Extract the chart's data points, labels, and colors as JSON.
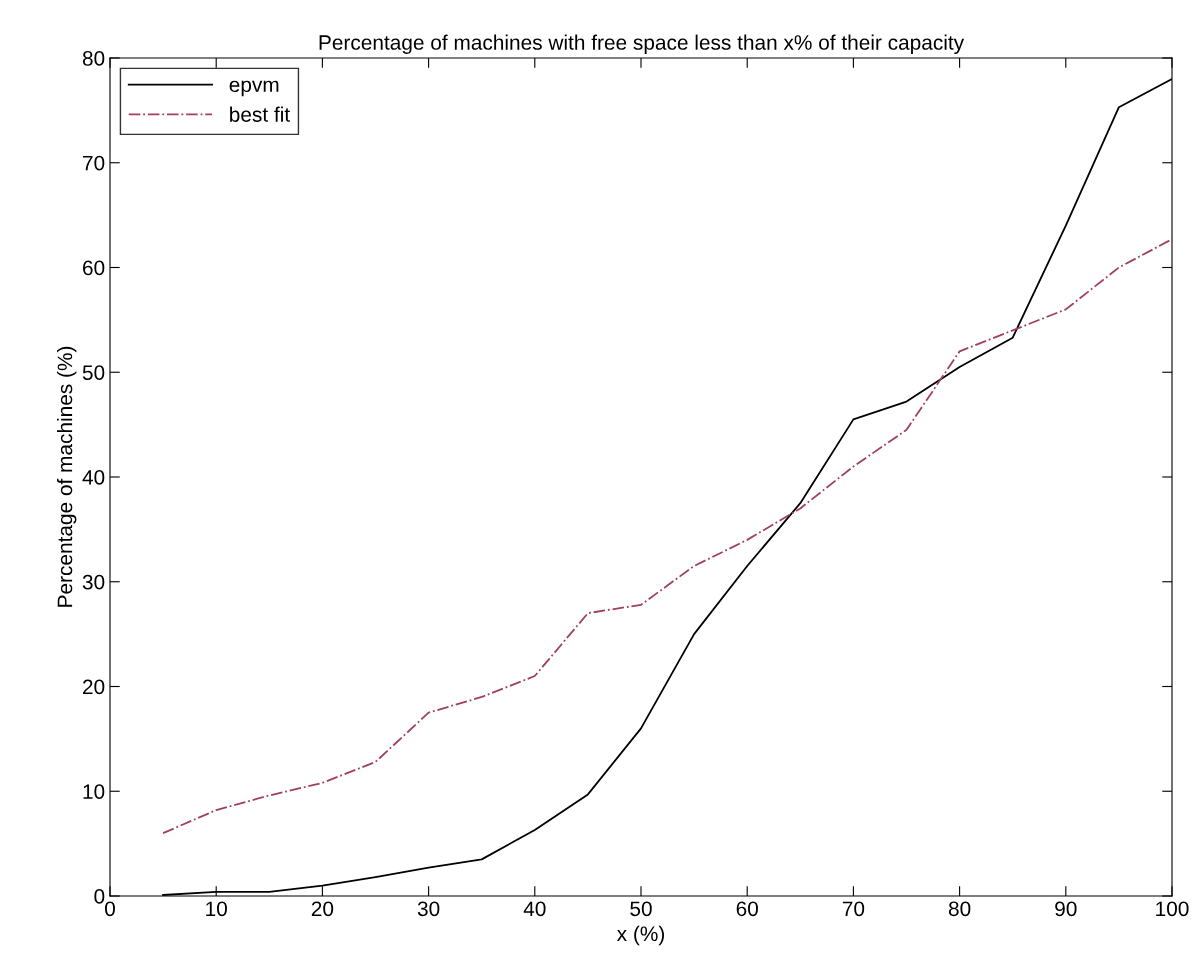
{
  "chart_data": {
    "type": "line",
    "title": "Percentage of machines with free space less than x% of their capacity",
    "xlabel": "x (%)",
    "ylabel": "Percentage of machines (%)",
    "x": [
      5,
      10,
      15,
      20,
      25,
      30,
      35,
      40,
      45,
      50,
      55,
      60,
      65,
      70,
      75,
      80,
      85,
      90,
      95,
      100
    ],
    "series": [
      {
        "name": "epvm",
        "color": "#000000",
        "line_style": "solid",
        "values": [
          0.1,
          0.4,
          0.4,
          1.0,
          1.8,
          2.7,
          3.5,
          6.3,
          9.7,
          16,
          25,
          31.5,
          37.5,
          45.5,
          47.2,
          50.5,
          53.3,
          64,
          75.3,
          78
        ]
      },
      {
        "name": "best fit",
        "color": "#a0405a",
        "line_style": "dashdot",
        "values": [
          6,
          8.2,
          9.6,
          10.8,
          12.8,
          17.5,
          19,
          21,
          27,
          27.8,
          31.5,
          34,
          37,
          41,
          44.5,
          52,
          54,
          56,
          60,
          62.7
        ]
      }
    ],
    "xlim": [
      0,
      100
    ],
    "xticks": [
      0,
      10,
      20,
      30,
      40,
      50,
      60,
      70,
      80,
      90,
      100
    ],
    "ylim": [
      0,
      80
    ],
    "yticks": [
      0,
      10,
      20,
      30,
      40,
      50,
      60,
      70,
      80
    ],
    "grid": false,
    "legend": "top left",
    "marker": "none"
  }
}
